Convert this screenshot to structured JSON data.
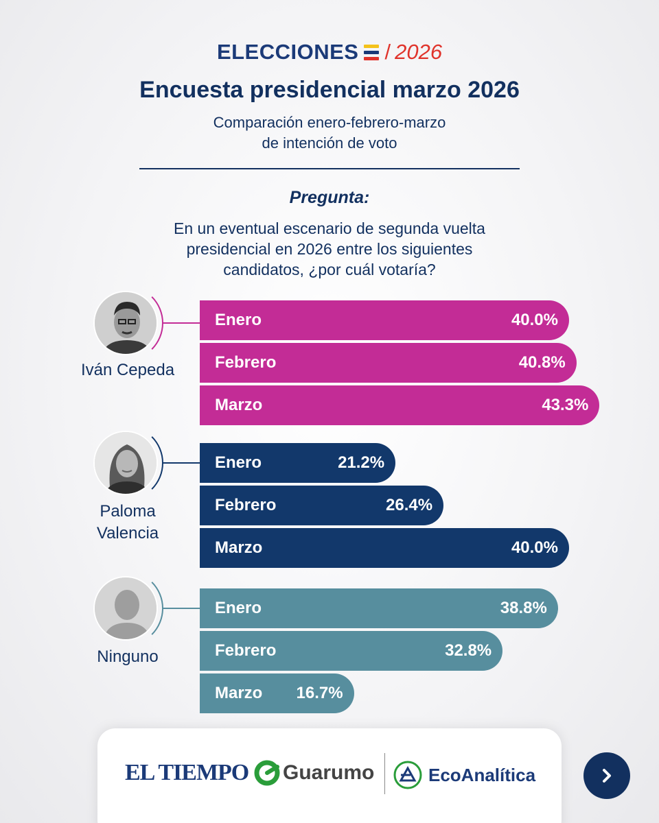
{
  "header": {
    "logo_word": "ELECCIONES",
    "logo_year": "2026",
    "title": "Encuesta presidencial marzo 2026",
    "subtitle_line1": "Comparación enero-febrero-marzo",
    "subtitle_line2": "de intención de voto",
    "question_label": "Pregunta:",
    "question_line1": "En un eventual escenario de segunda vuelta",
    "question_line2": "presidencial en 2026 entre los siguientes",
    "question_line3": "candidatos, ¿por cuál votaría?"
  },
  "colors": {
    "cepeda": "#c32c96",
    "valencia": "#12386b",
    "ninguno": "#578e9e",
    "navy": "#12305f",
    "flag_yellow": "#f4c21a",
    "flag_blue": "#1b3a78",
    "flag_red": "#e0332b"
  },
  "chart_data": {
    "type": "bar",
    "orientation": "horizontal",
    "groups": [
      {
        "name": "Iván Cepeda",
        "name_lines": [
          "Iván Cepeda"
        ],
        "color": "#c32c96",
        "series": [
          {
            "label": "Enero",
            "value": 40.0,
            "display": "40.0%"
          },
          {
            "label": "Febrero",
            "value": 40.8,
            "display": "40.8%"
          },
          {
            "label": "Marzo",
            "value": 43.3,
            "display": "43.3%"
          }
        ]
      },
      {
        "name": "Paloma Valencia",
        "name_lines": [
          "Paloma",
          "Valencia"
        ],
        "color": "#12386b",
        "series": [
          {
            "label": "Enero",
            "value": 21.2,
            "display": "21.2%"
          },
          {
            "label": "Febrero",
            "value": 26.4,
            "display": "26.4%"
          },
          {
            "label": "Marzo",
            "value": 40.0,
            "display": "40.0%"
          }
        ]
      },
      {
        "name": "Ninguno",
        "name_lines": [
          "Ninguno"
        ],
        "color": "#578e9e",
        "series": [
          {
            "label": "Enero",
            "value": 38.8,
            "display": "38.8%"
          },
          {
            "label": "Febrero",
            "value": 32.8,
            "display": "32.8%"
          },
          {
            "label": "Marzo",
            "value": 16.7,
            "display": "16.7%"
          }
        ]
      }
    ]
  },
  "footer": {
    "brand1": "EL TIEMPO",
    "brand2": "Guarumo",
    "brand3": "EcoAnalítica",
    "next_icon": "chevron-right-icon"
  }
}
